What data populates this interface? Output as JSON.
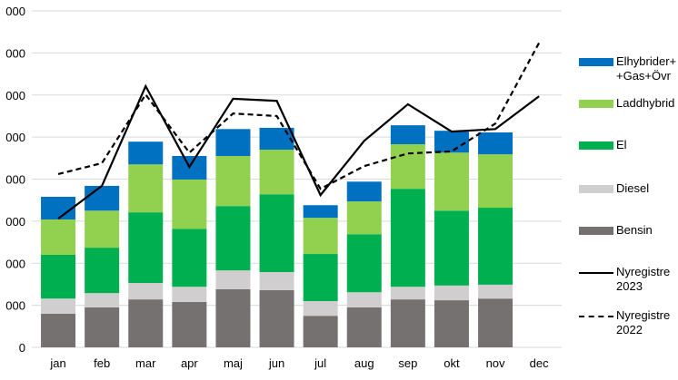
{
  "chart_data": {
    "type": "bar",
    "stacked": true,
    "categories": [
      "jan",
      "feb",
      "mar",
      "apr",
      "maj",
      "jun",
      "jul",
      "aug",
      "sep",
      "okt",
      "nov",
      "dec"
    ],
    "ylim": [
      0,
      8
    ],
    "yticks": [
      0,
      1,
      2,
      3,
      4,
      5,
      6,
      7,
      8
    ],
    "ytick_labels": [
      "0",
      "000",
      "000",
      "000",
      "000",
      "000",
      "000",
      "000",
      "000"
    ],
    "grid": true,
    "legend_position": "right",
    "series": [
      {
        "name": "Bensin",
        "color": "#767171",
        "values": [
          0.8,
          0.95,
          1.14,
          1.08,
          1.38,
          1.36,
          0.75,
          0.95,
          1.14,
          1.12,
          1.16,
          null
        ]
      },
      {
        "name": "Diesel",
        "color": "#d0cece",
        "values": [
          0.36,
          0.34,
          0.39,
          0.36,
          0.45,
          0.43,
          0.35,
          0.36,
          0.3,
          0.35,
          0.33,
          null
        ]
      },
      {
        "name": "El",
        "color": "#00b050",
        "values": [
          1.04,
          1.08,
          1.68,
          1.38,
          1.53,
          1.85,
          1.12,
          1.38,
          2.33,
          1.78,
          1.83,
          null
        ]
      },
      {
        "name": "Laddhybrid",
        "color": "#92d050",
        "values": [
          0.84,
          0.88,
          1.14,
          1.17,
          1.19,
          1.06,
          0.86,
          0.78,
          1.06,
          1.38,
          1.27,
          null
        ]
      },
      {
        "name": "Elhybrider+\n+Gas+Övr",
        "color": "#0070c0",
        "values": [
          0.54,
          0.59,
          0.54,
          0.56,
          0.64,
          0.52,
          0.3,
          0.47,
          0.45,
          0.52,
          0.52,
          null
        ]
      }
    ],
    "lines": [
      {
        "name": "Nyregistre\n2023",
        "style": "solid",
        "values": [
          3.06,
          3.84,
          6.21,
          4.29,
          5.91,
          5.86,
          3.62,
          4.91,
          5.78,
          5.13,
          5.19,
          5.97
        ]
      },
      {
        "name": "Nyregistre\n2022",
        "style": "dashed",
        "values": [
          4.12,
          4.38,
          6.01,
          4.63,
          5.56,
          5.5,
          3.77,
          4.31,
          4.61,
          4.66,
          5.32,
          7.24
        ]
      }
    ]
  }
}
